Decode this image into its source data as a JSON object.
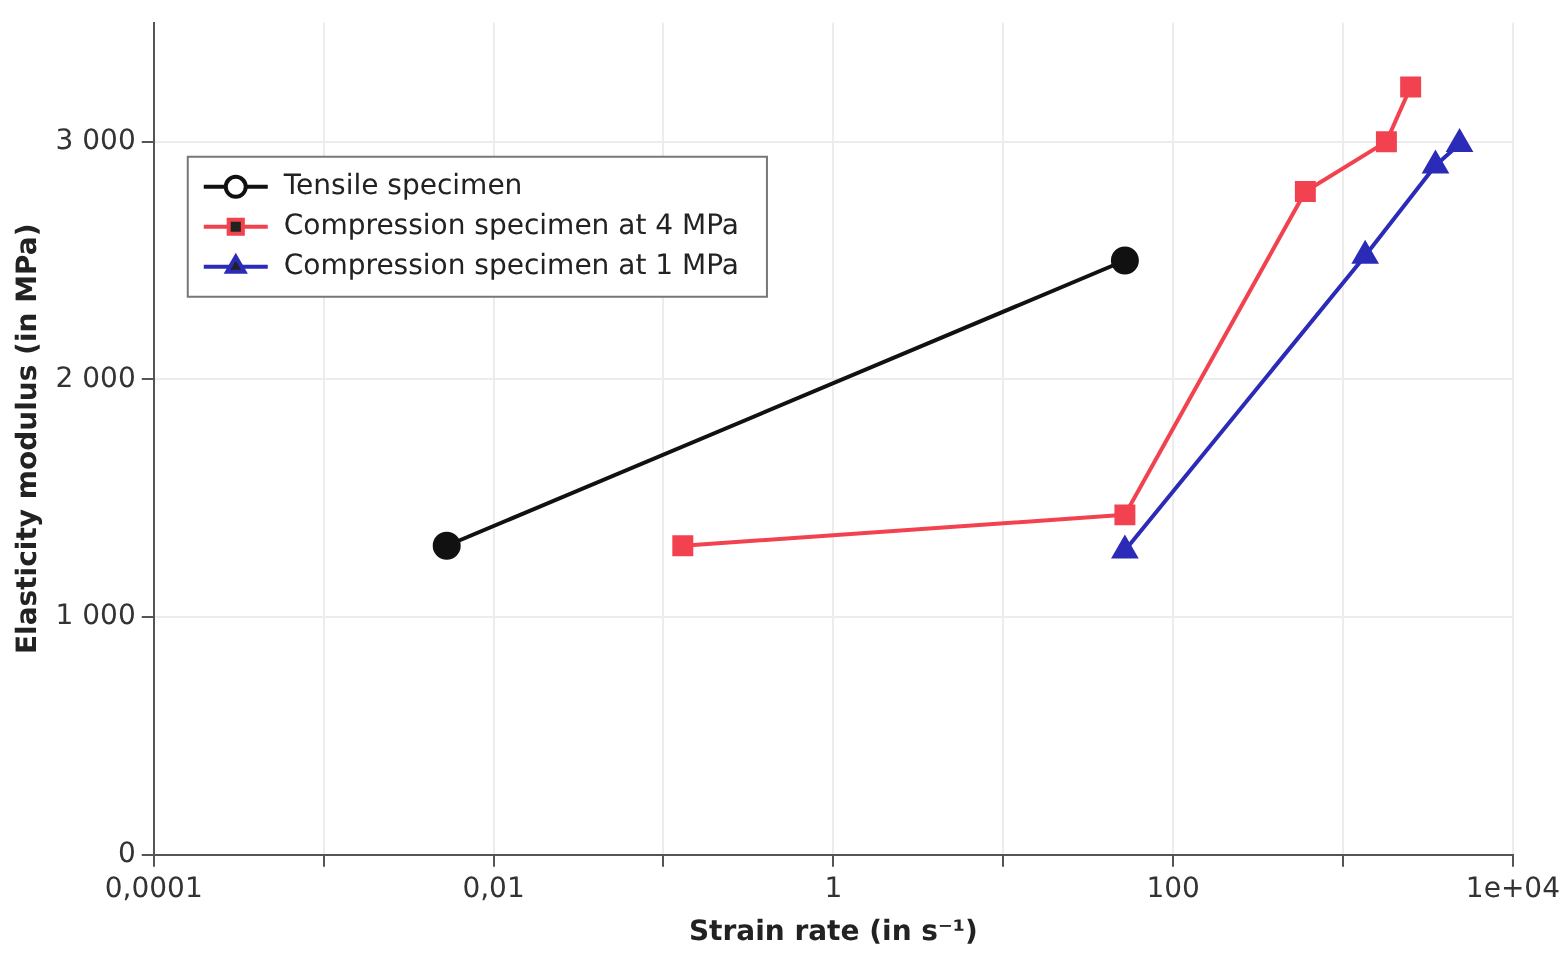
{
  "chart_data": {
    "type": "line",
    "xlabel": "Strain rate (in s⁻¹)",
    "ylabel": "Elasticity modulus (in MPa)",
    "log": "x",
    "xlim": [
      0.0001,
      10000
    ],
    "xticks": [
      {
        "value": 0.0001,
        "label": "0,0001"
      },
      {
        "value": 0.001,
        "label": null
      },
      {
        "value": 0.01,
        "label": "0,01"
      },
      {
        "value": 0.1,
        "label": null
      },
      1,
      {
        "value": 10,
        "label": null
      },
      100,
      {
        "value": 1000,
        "label": null
      },
      {
        "value": 10000,
        "label": "1e+04"
      }
    ],
    "ylim": [
      0,
      3500
    ],
    "yticks": [
      {
        "value": 0,
        "label": "0"
      },
      {
        "value": 1000,
        "label": "1 000"
      },
      {
        "value": 2000,
        "label": "2 000"
      },
      {
        "value": 3000,
        "label": "3 000"
      }
    ],
    "grid": true,
    "legend": "top left",
    "line_style": "solid",
    "series": [
      {
        "name": "Tensile specimen",
        "color": "#111111",
        "marker": "circle",
        "x": [
          0.0053,
          52
        ],
        "values": [
          1300,
          2500
        ]
      },
      {
        "name": "Compression specimen at 4 MPa",
        "color": "#f2414f",
        "marker": "square",
        "x": [
          0.13,
          52,
          600,
          1800,
          2500
        ],
        "values": [
          1300,
          1430,
          2790,
          3000,
          3230
        ]
      },
      {
        "name": "Compression specimen at 1 MPa",
        "color": "#2b2bb8",
        "marker": "triangle",
        "x": [
          52,
          1350,
          3500,
          4850
        ],
        "values": [
          1280,
          2520,
          2900,
          2990
        ]
      }
    ]
  }
}
